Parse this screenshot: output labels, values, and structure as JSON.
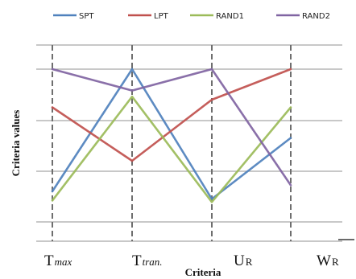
{
  "chart_data": {
    "type": "line",
    "xlabel": "Criteria",
    "ylabel": "Criteria values",
    "categories": [
      {
        "main": "T",
        "sub": "max",
        "italic": true
      },
      {
        "main": "T",
        "sub": "tran.",
        "italic": true
      },
      {
        "main": "U",
        "sub": "R",
        "italic": false
      },
      {
        "main": "W",
        "sub": "R",
        "italic": false
      }
    ],
    "ylim": [
      0,
      1
    ],
    "grid": true,
    "legend_position": "top",
    "series": [
      {
        "name": "SPT",
        "color": "#4f81bd",
        "values": [
          0.2,
          1.0,
          0.15,
          0.55
        ]
      },
      {
        "name": "LPT",
        "color": "#c0504d",
        "values": [
          0.75,
          0.4,
          0.8,
          1.0
        ]
      },
      {
        "name": "RAND1",
        "color": "#9bbb59",
        "values": [
          0.14,
          0.82,
          0.13,
          0.75
        ]
      },
      {
        "name": "RAND2",
        "color": "#8064a2",
        "values": [
          1.0,
          0.86,
          1.0,
          0.24
        ]
      }
    ]
  }
}
